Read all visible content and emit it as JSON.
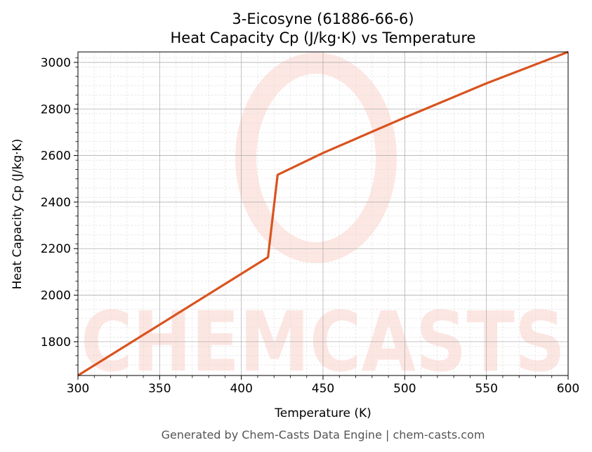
{
  "chart_data": {
    "type": "line",
    "title": "3-Eicosyne (61886-66-6)",
    "subtitle": "Heat Capacity Cp (J/kg·K) vs Temperature",
    "xlabel": "Temperature (K)",
    "ylabel": "Heat Capacity Cp (J/kg·K)",
    "xlim": [
      300,
      600
    ],
    "ylim": [
      1655,
      3045
    ],
    "xticks": [
      300,
      350,
      400,
      450,
      500,
      550,
      600
    ],
    "yticks": [
      1800,
      2000,
      2200,
      2400,
      2600,
      2800,
      3000
    ],
    "grid": true,
    "series": [
      {
        "name": "Cp",
        "color": "#d9531e",
        "x": [
          300,
          416.3,
          422.2,
          450,
          500,
          550,
          600
        ],
        "y": [
          1655,
          2163,
          2517,
          2611,
          2763,
          2910,
          3045
        ]
      }
    ],
    "watermark": "CHEMCASTS",
    "footer": "Generated by Chem-Casts Data Engine | chem-casts.com"
  }
}
